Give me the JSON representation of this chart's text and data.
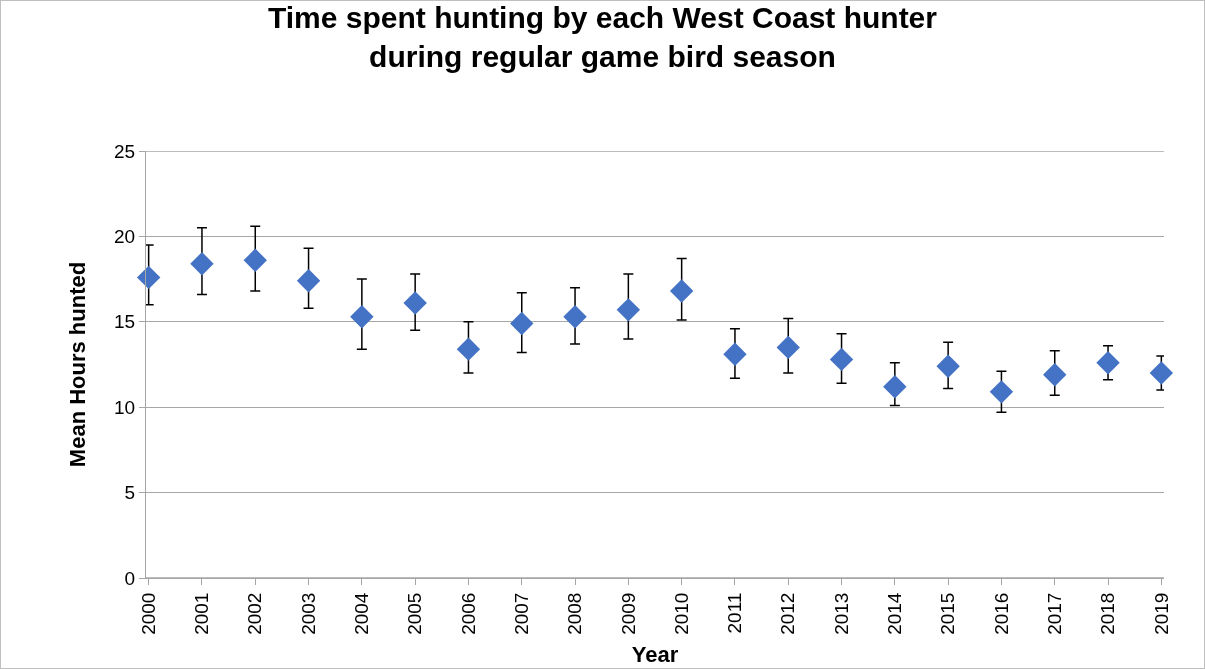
{
  "chart_data": {
    "type": "scatter",
    "title": "Time spent hunting by each West Coast hunter during regular game bird season",
    "xlabel": "Year",
    "ylabel": "Mean Hours hunted",
    "categories": [
      "2000",
      "2001",
      "2002",
      "2003",
      "2004",
      "2005",
      "2006",
      "2007",
      "2008",
      "2009",
      "2010",
      "2011",
      "2012",
      "2013",
      "2014",
      "2015",
      "2016",
      "2017",
      "2018",
      "2019"
    ],
    "values": [
      17.6,
      18.4,
      18.6,
      17.4,
      15.3,
      16.1,
      13.4,
      14.9,
      15.3,
      15.7,
      16.8,
      13.1,
      13.5,
      12.8,
      11.2,
      12.4,
      10.9,
      11.9,
      12.6,
      12.0
    ],
    "errors": [
      [
        16.0,
        19.5
      ],
      [
        16.6,
        20.5
      ],
      [
        16.8,
        20.6
      ],
      [
        15.8,
        19.3
      ],
      [
        13.4,
        17.5
      ],
      [
        14.5,
        17.8
      ],
      [
        12.0,
        15.0
      ],
      [
        13.2,
        16.7
      ],
      [
        13.7,
        17.0
      ],
      [
        14.0,
        17.8
      ],
      [
        15.1,
        18.7
      ],
      [
        11.7,
        14.6
      ],
      [
        12.0,
        15.2
      ],
      [
        11.4,
        14.3
      ],
      [
        10.1,
        12.6
      ],
      [
        11.1,
        13.8
      ],
      [
        9.7,
        12.1
      ],
      [
        10.7,
        13.3
      ],
      [
        11.6,
        13.6
      ],
      [
        11.0,
        13.0
      ]
    ],
    "color": "#4472c4",
    "marker": "diamond",
    "ylim": [
      0,
      25
    ],
    "yticks": [
      0,
      5,
      10,
      15,
      20,
      25
    ],
    "grid": "y"
  }
}
